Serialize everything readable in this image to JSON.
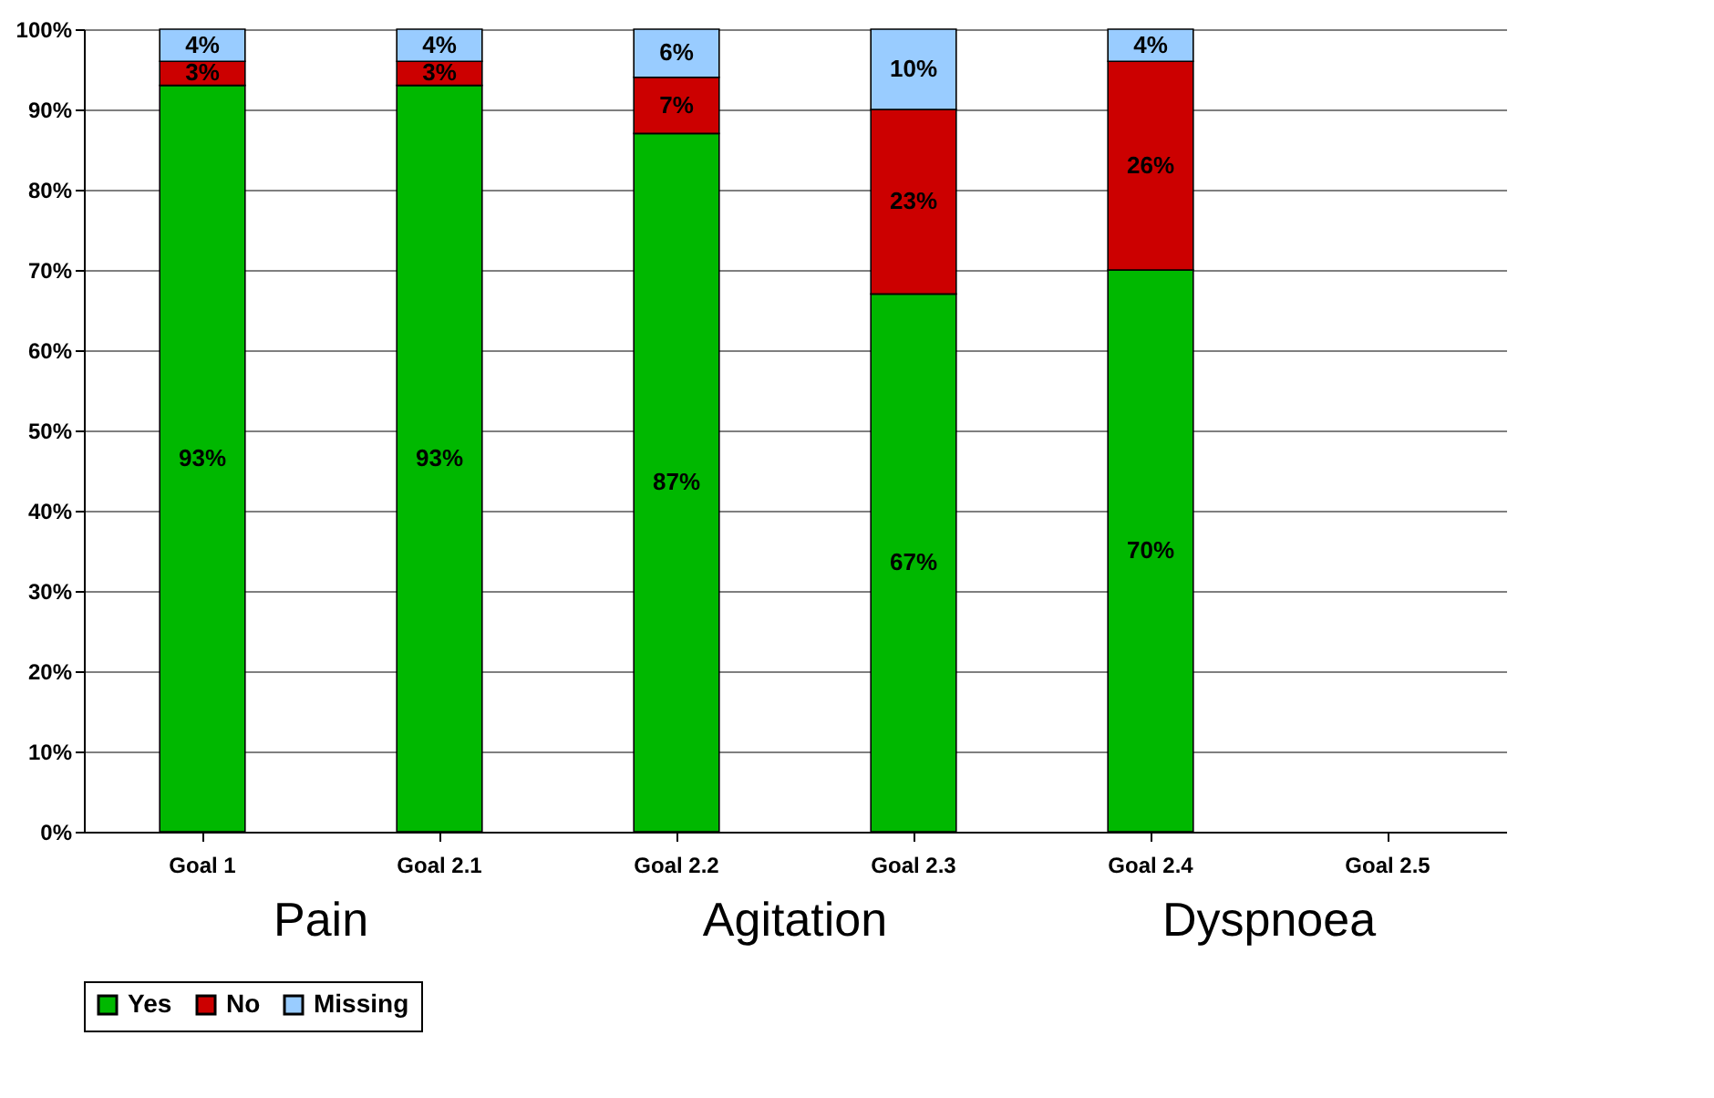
{
  "chart_data": {
    "type": "bar",
    "stacked": true,
    "categories": [
      "Goal 1",
      "Goal 2.1",
      "Goal 2.2",
      "Goal 2.3",
      "Goal 2.4",
      "Goal 2.5"
    ],
    "series": [
      {
        "name": "Yes",
        "color": "#00b800",
        "values": [
          93,
          93,
          87,
          67,
          70,
          null
        ],
        "value_labels": [
          "93%",
          "93%",
          "87%",
          "67%",
          "70%",
          null
        ]
      },
      {
        "name": "No",
        "color": "#cc0000",
        "values": [
          3,
          3,
          7,
          23,
          26,
          null
        ],
        "value_labels": [
          "3%",
          "3%",
          "7%",
          "23%",
          "26%",
          null
        ]
      },
      {
        "name": "Missing",
        "color": "#99ccff",
        "values": [
          4,
          4,
          6,
          10,
          4,
          null
        ],
        "value_labels": [
          "4%",
          "4%",
          "6%",
          "10%",
          "4%",
          null
        ]
      }
    ],
    "ylim": [
      0,
      100
    ],
    "yticks": [
      {
        "value": 0,
        "label": "0%"
      },
      {
        "value": 10,
        "label": "10%"
      },
      {
        "value": 20,
        "label": "20%"
      },
      {
        "value": 30,
        "label": "30%"
      },
      {
        "value": 40,
        "label": "40%"
      },
      {
        "value": 50,
        "label": "50%"
      },
      {
        "value": 60,
        "label": "60%"
      },
      {
        "value": 70,
        "label": "70%"
      },
      {
        "value": 80,
        "label": "80%"
      },
      {
        "value": 90,
        "label": "90%"
      },
      {
        "value": 100,
        "label": "100%"
      }
    ],
    "grid": "y",
    "legend": "bottom",
    "annotations": [
      "Pain",
      "Agitation",
      "Dyspnoea"
    ]
  }
}
